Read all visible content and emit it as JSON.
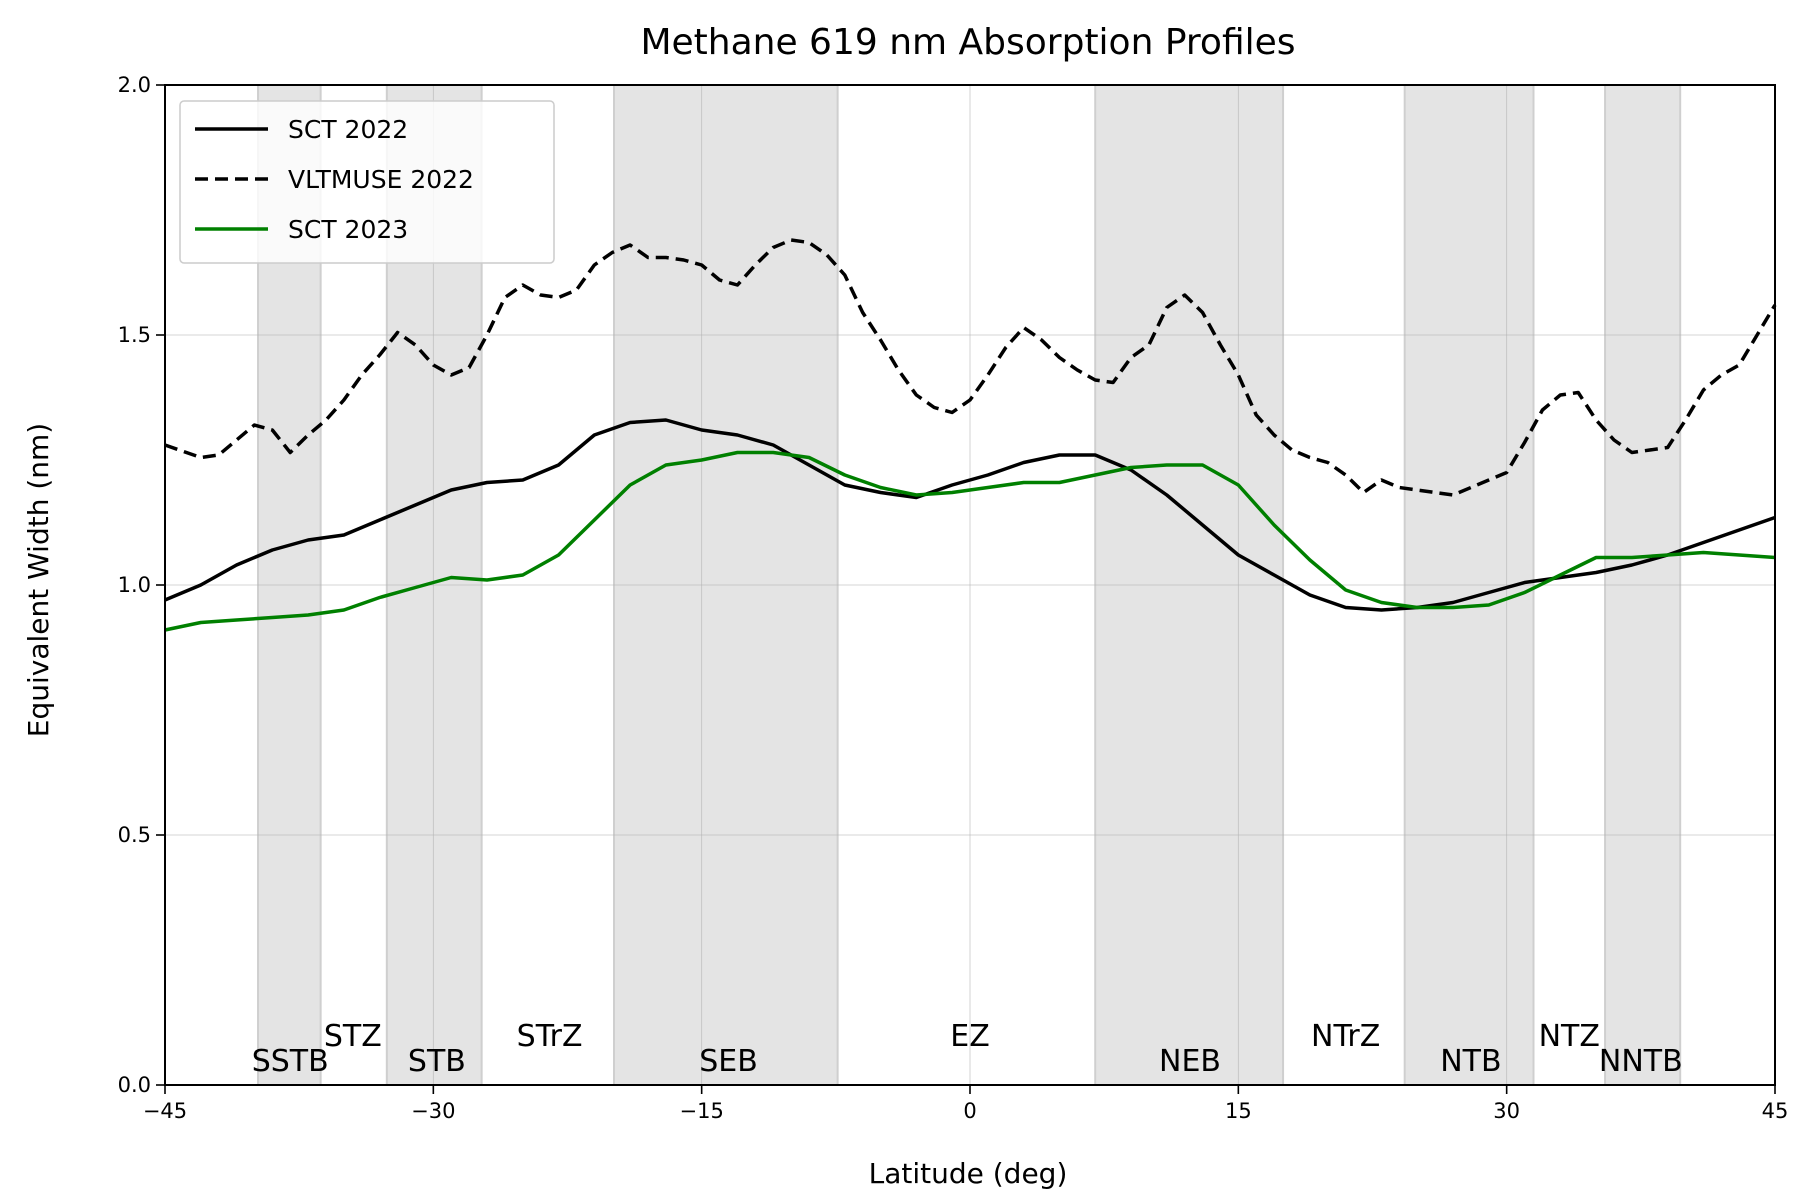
{
  "chart_data": {
    "type": "line",
    "title": "Methane 619 nm Absorption Profiles",
    "xlabel": "Latitude (deg)",
    "ylabel": "Equivalent Width (nm)",
    "xlim": [
      -45,
      45
    ],
    "ylim": [
      0.0,
      2.0
    ],
    "xticks": [
      -45,
      -30,
      -15,
      0,
      15,
      30,
      45
    ],
    "xtick_labels": [
      "−45",
      "−30",
      "−15",
      "0",
      "15",
      "30",
      "45"
    ],
    "yticks": [
      0.0,
      0.5,
      1.0,
      1.5,
      2.0
    ],
    "ytick_labels": [
      "0.0",
      "0.5",
      "1.0",
      "1.5",
      "2.0"
    ],
    "grid": true,
    "legend_position": "top-left",
    "shaded_bands": [
      {
        "from": -39.8,
        "to": -36.3
      },
      {
        "from": -32.6,
        "to": -27.3
      },
      {
        "from": -19.9,
        "to": -7.4
      },
      {
        "from": 7.0,
        "to": 17.5
      },
      {
        "from": 24.3,
        "to": 31.5
      },
      {
        "from": 35.5,
        "to": 39.7
      }
    ],
    "region_labels": [
      {
        "text": "SSTB",
        "x": -38.0,
        "y": 0.02
      },
      {
        "text": "STZ",
        "x": -34.5,
        "y": 0.07
      },
      {
        "text": "STB",
        "x": -29.8,
        "y": 0.02
      },
      {
        "text": "STrZ",
        "x": -23.5,
        "y": 0.07
      },
      {
        "text": "SEB",
        "x": -13.5,
        "y": 0.02
      },
      {
        "text": "EZ",
        "x": 0.0,
        "y": 0.07
      },
      {
        "text": "NEB",
        "x": 12.3,
        "y": 0.02
      },
      {
        "text": "NTrZ",
        "x": 21.0,
        "y": 0.07
      },
      {
        "text": "NTB",
        "x": 28.0,
        "y": 0.02
      },
      {
        "text": "NTZ",
        "x": 33.5,
        "y": 0.07
      },
      {
        "text": "NNTB",
        "x": 37.5,
        "y": 0.02
      }
    ],
    "series": [
      {
        "name": "SCT 2022",
        "color": "#000000",
        "style": "solid",
        "x": [
          -45,
          -43,
          -41,
          -39,
          -37,
          -35,
          -33,
          -31,
          -29,
          -27,
          -25,
          -23,
          -21,
          -19,
          -17,
          -15,
          -13,
          -11,
          -9,
          -7,
          -5,
          -3,
          -1,
          1,
          3,
          5,
          7,
          9,
          11,
          13,
          15,
          17,
          19,
          21,
          23,
          25,
          27,
          29,
          31,
          33,
          35,
          37,
          39,
          41,
          43,
          45
        ],
        "y": [
          0.97,
          1.0,
          1.04,
          1.07,
          1.09,
          1.1,
          1.13,
          1.16,
          1.19,
          1.205,
          1.21,
          1.24,
          1.3,
          1.325,
          1.33,
          1.31,
          1.3,
          1.28,
          1.24,
          1.2,
          1.185,
          1.175,
          1.2,
          1.22,
          1.245,
          1.26,
          1.26,
          1.23,
          1.18,
          1.12,
          1.06,
          1.02,
          0.98,
          0.955,
          0.95,
          0.955,
          0.965,
          0.985,
          1.005,
          1.015,
          1.025,
          1.04,
          1.06,
          1.085,
          1.11,
          1.135
        ]
      },
      {
        "name": "VLTMUSE 2022",
        "color": "#000000",
        "style": "dashed",
        "x": [
          -45,
          -43,
          -42,
          -40,
          -39,
          -38,
          -37,
          -36,
          -35,
          -34,
          -33,
          -32,
          -31,
          -30,
          -29,
          -28,
          -27,
          -26,
          -25,
          -24,
          -23,
          -22,
          -21,
          -20,
          -19,
          -18,
          -17,
          -16,
          -15,
          -14,
          -13,
          -12,
          -11,
          -10,
          -9,
          -8,
          -7,
          -6,
          -5,
          -4,
          -3,
          -2,
          -1,
          0,
          1,
          2,
          3,
          4,
          5,
          6,
          7,
          8,
          9,
          10,
          11,
          12,
          13,
          14,
          15,
          16,
          17,
          18,
          19,
          20,
          21,
          22,
          23,
          24,
          25,
          26,
          27,
          28,
          29,
          30,
          31,
          32,
          33,
          34,
          35,
          36,
          37,
          38,
          39,
          40,
          41,
          42,
          43,
          44,
          45
        ],
        "y": [
          1.28,
          1.255,
          1.26,
          1.32,
          1.31,
          1.265,
          1.3,
          1.33,
          1.37,
          1.42,
          1.46,
          1.505,
          1.48,
          1.44,
          1.42,
          1.435,
          1.5,
          1.575,
          1.6,
          1.58,
          1.575,
          1.59,
          1.64,
          1.665,
          1.68,
          1.655,
          1.655,
          1.65,
          1.64,
          1.61,
          1.6,
          1.64,
          1.675,
          1.69,
          1.685,
          1.66,
          1.62,
          1.545,
          1.49,
          1.43,
          1.38,
          1.355,
          1.345,
          1.37,
          1.42,
          1.475,
          1.515,
          1.49,
          1.455,
          1.43,
          1.41,
          1.405,
          1.455,
          1.48,
          1.555,
          1.58,
          1.545,
          1.48,
          1.42,
          1.34,
          1.3,
          1.27,
          1.255,
          1.245,
          1.22,
          1.185,
          1.21,
          1.195,
          1.19,
          1.185,
          1.18,
          1.195,
          1.21,
          1.225,
          1.285,
          1.35,
          1.38,
          1.385,
          1.33,
          1.29,
          1.265,
          1.27,
          1.275,
          1.33,
          1.39,
          1.42,
          1.44,
          1.5,
          1.56
        ]
      },
      {
        "name": "SCT 2023",
        "color": "#008000",
        "style": "solid",
        "x": [
          -45,
          -43,
          -41,
          -39,
          -37,
          -35,
          -33,
          -31,
          -29,
          -27,
          -25,
          -23,
          -21,
          -19,
          -17,
          -15,
          -13,
          -11,
          -9,
          -7,
          -5,
          -3,
          -1,
          1,
          3,
          5,
          7,
          9,
          11,
          13,
          15,
          17,
          19,
          21,
          23,
          25,
          27,
          29,
          31,
          33,
          35,
          37,
          39,
          41,
          43,
          45
        ],
        "y": [
          0.91,
          0.925,
          0.93,
          0.935,
          0.94,
          0.95,
          0.975,
          0.995,
          1.015,
          1.01,
          1.02,
          1.06,
          1.13,
          1.2,
          1.24,
          1.25,
          1.265,
          1.265,
          1.255,
          1.22,
          1.195,
          1.18,
          1.185,
          1.195,
          1.205,
          1.205,
          1.22,
          1.235,
          1.24,
          1.24,
          1.2,
          1.12,
          1.05,
          0.99,
          0.965,
          0.955,
          0.955,
          0.96,
          0.985,
          1.02,
          1.055,
          1.055,
          1.06,
          1.065,
          1.06,
          1.055
        ]
      }
    ]
  }
}
